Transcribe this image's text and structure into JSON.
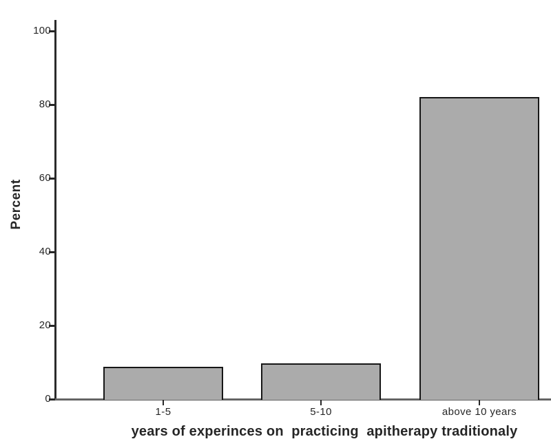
{
  "chart_data": {
    "type": "bar",
    "title": "",
    "categories": [
      "1-5",
      "5-10",
      "above 10 years"
    ],
    "values": [
      8.8,
      9.8,
      82.0
    ],
    "xlabel": "years of experinces on  practicing  apitherapy traditionaly",
    "ylabel": "Percent",
    "ylim": [
      0,
      100
    ],
    "yticks": [
      0,
      20,
      40,
      60,
      80,
      100
    ],
    "grid": false,
    "legend": "none",
    "colors": {
      "bar_fill": "#ababab",
      "bar_border": "#161616",
      "y_axis": "#2b2b2b",
      "x_axis": "#646464",
      "tick": "#262626",
      "text": "#262626",
      "background": "#ffffff"
    }
  }
}
